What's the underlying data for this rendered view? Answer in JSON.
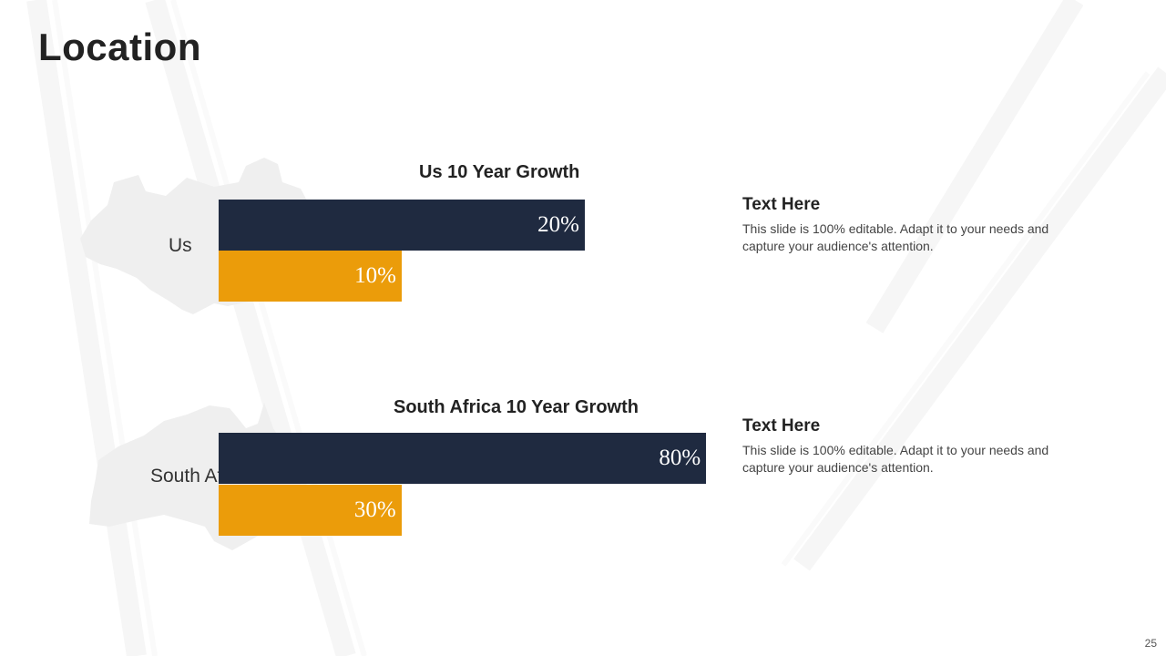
{
  "slide": {
    "title": "Location",
    "page_number": "25"
  },
  "colors": {
    "dark": "#1f2a40",
    "accent": "#eb9c0a",
    "map_fill": "#efefef",
    "bg_deco": "#f7f7f7"
  },
  "maps": {
    "us_label": "Us",
    "sa_label": "South Africa"
  },
  "text_blocks": [
    {
      "heading": "Text Here",
      "body": "This slide is 100% editable. Adapt it to your needs and capture your audience's attention."
    },
    {
      "heading": "Text Here",
      "body": "This slide is 100% editable. Adapt it to your needs and capture your audience's attention."
    }
  ],
  "chart_data": [
    {
      "type": "bar",
      "orientation": "horizontal",
      "title": "Us 10 Year Growth",
      "xlim": [
        0,
        100
      ],
      "bars": [
        {
          "value": 20,
          "label": "20%",
          "color": "#1f2a40"
        },
        {
          "value": 10,
          "label": "10%",
          "color": "#eb9c0a"
        }
      ]
    },
    {
      "type": "bar",
      "orientation": "horizontal",
      "title": "South Africa 10 Year Growth",
      "xlim": [
        0,
        100
      ],
      "bars": [
        {
          "value": 80,
          "label": "80%",
          "color": "#1f2a40"
        },
        {
          "value": 30,
          "label": "30%",
          "color": "#eb9c0a"
        }
      ]
    }
  ]
}
